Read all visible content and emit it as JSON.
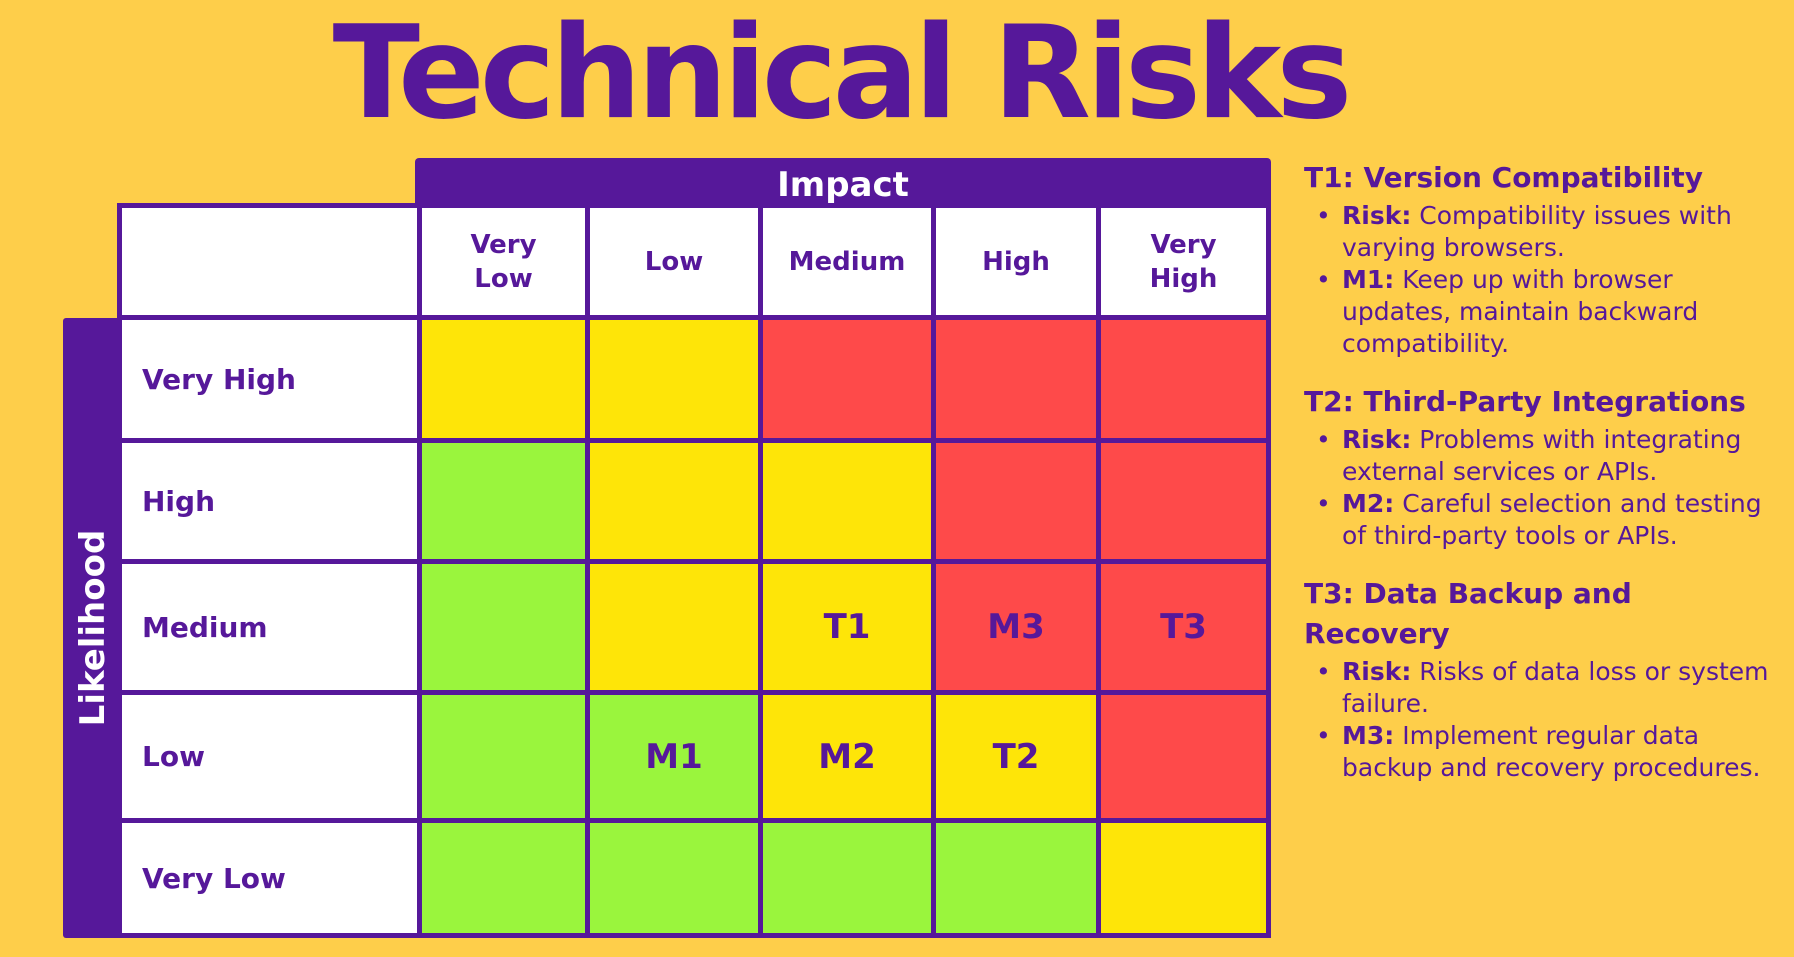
{
  "title": "Technical Risks",
  "impact_label": "Impact",
  "likelihood_label": "Likelihood",
  "colors": {
    "background": "#FECE4A",
    "primary": "#56189A",
    "green": "#9AF53D",
    "yellow": "#FEE508",
    "red": "#FE4A4A",
    "white": "#FFFFFF"
  },
  "matrix": {
    "columns": [
      {
        "label": "Very Low",
        "lines": [
          "Very",
          "Low"
        ]
      },
      {
        "label": "Low",
        "lines": [
          "Low"
        ]
      },
      {
        "label": "Medium",
        "lines": [
          "Medium"
        ]
      },
      {
        "label": "High",
        "lines": [
          "High"
        ]
      },
      {
        "label": "Very High",
        "lines": [
          "Very",
          "High"
        ]
      }
    ],
    "rows": [
      {
        "label": "Very High",
        "cells": [
          {
            "level": "yellow",
            "text": ""
          },
          {
            "level": "yellow",
            "text": ""
          },
          {
            "level": "red",
            "text": ""
          },
          {
            "level": "red",
            "text": ""
          },
          {
            "level": "red",
            "text": ""
          }
        ]
      },
      {
        "label": "High",
        "cells": [
          {
            "level": "green",
            "text": ""
          },
          {
            "level": "yellow",
            "text": ""
          },
          {
            "level": "yellow",
            "text": ""
          },
          {
            "level": "red",
            "text": ""
          },
          {
            "level": "red",
            "text": ""
          }
        ]
      },
      {
        "label": "Medium",
        "cells": [
          {
            "level": "green",
            "text": ""
          },
          {
            "level": "yellow",
            "text": ""
          },
          {
            "level": "yellow",
            "text": "T1"
          },
          {
            "level": "red",
            "text": "M3"
          },
          {
            "level": "red",
            "text": "T3"
          }
        ]
      },
      {
        "label": "Low",
        "cells": [
          {
            "level": "green",
            "text": ""
          },
          {
            "level": "green",
            "text": "M1"
          },
          {
            "level": "yellow",
            "text": "M2"
          },
          {
            "level": "yellow",
            "text": "T2"
          },
          {
            "level": "red",
            "text": ""
          }
        ]
      },
      {
        "label": "Very Low",
        "cells": [
          {
            "level": "green",
            "text": ""
          },
          {
            "level": "green",
            "text": ""
          },
          {
            "level": "green",
            "text": ""
          },
          {
            "level": "green",
            "text": ""
          },
          {
            "level": "yellow",
            "text": ""
          }
        ]
      }
    ]
  },
  "legend": [
    {
      "heading": "T1: Version Compatibility",
      "items": [
        {
          "label": "Risk:",
          "text": "Compatibility issues with varying browsers."
        },
        {
          "label": "M1:",
          "text": "Keep up with browser updates, maintain backward compatibility."
        }
      ]
    },
    {
      "heading": "T2: Third-Party Integrations",
      "items": [
        {
          "label": "Risk:",
          "text": "Problems with integrating external services or APIs."
        },
        {
          "label": "M2:",
          "text": "Careful selection and testing of third-party tools or APIs."
        }
      ]
    },
    {
      "heading": "T3: Data Backup and Recovery",
      "items": [
        {
          "label": "Risk:",
          "text": "Risks of data loss or system failure."
        },
        {
          "label": "M3:",
          "text": "Implement regular data backup and recovery procedures."
        }
      ]
    }
  ]
}
